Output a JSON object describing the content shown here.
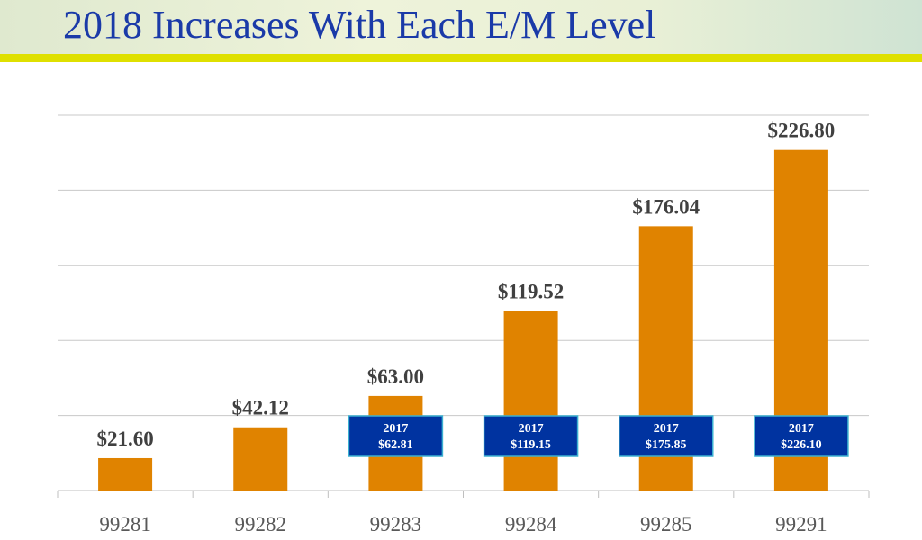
{
  "header": {
    "title": "2018 Increases With Each E/M Level"
  },
  "colors": {
    "bar": "#e08300",
    "box": "#0033a0",
    "box_border": "#3ab0d0",
    "title": "#1a3aa8",
    "strip": "#dfe000"
  },
  "chart_data": {
    "type": "bar",
    "title": "2018 Increases With Each E/M Level",
    "categories": [
      "99281",
      "99282",
      "99283",
      "99284",
      "99285",
      "99291"
    ],
    "values": [
      21.6,
      42.12,
      63.0,
      119.52,
      176.04,
      226.8
    ],
    "value_labels": [
      "$21.60",
      "$42.12",
      "$63.00",
      "$119.52",
      "$176.04",
      "$226.80"
    ],
    "annotations": [
      null,
      null,
      {
        "year": "2017",
        "value": "$62.81"
      },
      {
        "year": "2017",
        "value": "$119.15"
      },
      {
        "year": "2017",
        "value": "$175.85"
      },
      {
        "year": "2017",
        "value": "$226.10"
      }
    ],
    "ylim": [
      0,
      250
    ],
    "ystep": 50,
    "grid": true,
    "xlabel": "",
    "ylabel": ""
  }
}
